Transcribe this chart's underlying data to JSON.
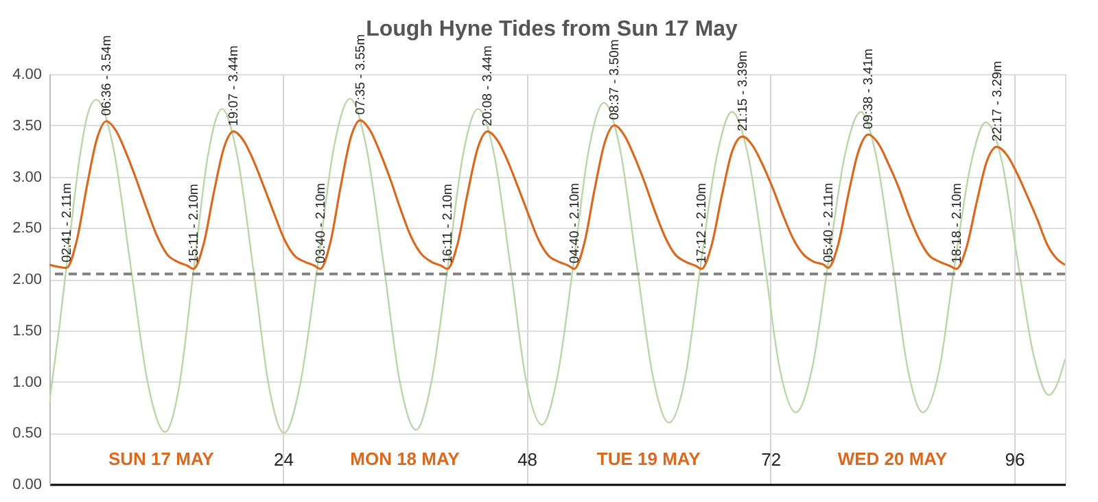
{
  "chart_data": {
    "type": "line",
    "title": "Lough Hyne Tides from Sun 17 May",
    "xlim": [
      1,
      101
    ],
    "xticks": [
      24,
      48,
      72,
      96
    ],
    "ylim": [
      0,
      4
    ],
    "yticks": [
      {
        "value": 0,
        "label": "0.00"
      },
      {
        "value": 0.5,
        "label": "0.50"
      },
      {
        "value": 1,
        "label": "1.00"
      },
      {
        "value": 1.5,
        "label": "1.50"
      },
      {
        "value": 2,
        "label": "2.00"
      },
      {
        "value": 2.5,
        "label": "2.50"
      },
      {
        "value": 3,
        "label": "3.00"
      },
      {
        "value": 3.5,
        "label": "3.50"
      },
      {
        "value": 4,
        "label": "4.00"
      }
    ],
    "grid": true,
    "line_style": "solid",
    "series": [
      {
        "color": "#b9d6a6",
        "x": [
          1,
          2,
          3,
          4,
          4.8,
          5.6,
          7.3,
          9.0,
          10.7,
          12.4,
          13.8,
          15.2,
          16.6,
          18.0,
          19.5,
          21.1,
          22.6,
          24.1,
          25.7,
          27.4,
          29.0,
          30.6,
          32.2,
          33.9,
          35.5,
          37.1,
          38.6,
          40.2,
          41.7,
          43.2,
          44.8,
          46.4,
          47.9,
          49.5,
          51.0,
          52.6,
          54.1,
          55.6,
          57.2,
          58.8,
          60.4,
          62.0,
          63.6,
          65.1,
          66.7,
          68.2,
          69.8,
          71.4,
          72.9,
          74.5,
          76.1,
          77.7,
          79.3,
          80.9,
          82.4,
          84.0,
          85.5,
          87.0,
          88.6,
          90.1,
          91.7,
          93.2,
          94.8,
          96.3,
          97.9,
          99.4,
          100.2,
          101
        ],
        "values": [
          0.8,
          1.55,
          2.4,
          3.2,
          3.62,
          3.75,
          3.28,
          2.13,
          0.98,
          0.51,
          0.97,
          2.09,
          3.2,
          3.66,
          3.2,
          2.08,
          0.96,
          0.5,
          0.98,
          2.13,
          3.28,
          3.76,
          3.29,
          2.15,
          1.0,
          0.53,
          0.99,
          2.1,
          3.2,
          3.66,
          3.21,
          2.12,
          1.03,
          0.58,
          1.04,
          2.15,
          3.26,
          3.72,
          3.26,
          2.16,
          1.06,
          0.6,
          1.04,
          2.12,
          3.19,
          3.63,
          3.2,
          2.17,
          1.13,
          0.7,
          1.13,
          2.17,
          3.2,
          3.63,
          3.2,
          2.17,
          1.13,
          0.7,
          1.11,
          2.12,
          3.11,
          3.53,
          3.14,
          2.2,
          1.26,
          0.87,
          0.97,
          1.22
        ]
      },
      {
        "color": "#d9691f",
        "x": [
          1,
          2.68,
          3.68,
          4.68,
          5.68,
          6.6,
          7.6,
          8.6,
          9.6,
          10.6,
          11.6,
          12.6,
          13.6,
          14.6,
          15.18,
          16.18,
          17.18,
          18.18,
          19.12,
          20.12,
          21.12,
          22.12,
          23.12,
          24.12,
          25.12,
          26.12,
          27.12,
          27.67,
          28.67,
          29.67,
          30.67,
          31.58,
          32.58,
          33.58,
          34.58,
          35.58,
          36.58,
          37.58,
          38.58,
          39.58,
          40.18,
          41.18,
          42.18,
          43.18,
          44.13,
          45.13,
          46.13,
          47.13,
          48.13,
          49.13,
          50.13,
          51.13,
          52.13,
          52.67,
          53.67,
          54.67,
          55.67,
          56.62,
          57.62,
          58.62,
          59.62,
          60.62,
          61.62,
          62.62,
          63.62,
          64.62,
          65.2,
          66.2,
          67.2,
          68.2,
          69.25,
          70.25,
          71.25,
          72.25,
          73.25,
          74.25,
          75.25,
          76.25,
          77.25,
          77.67,
          78.67,
          79.67,
          80.67,
          81.63,
          82.63,
          83.63,
          84.63,
          85.63,
          86.63,
          87.63,
          88.63,
          89.63,
          90.3,
          91.3,
          92.3,
          93.3,
          94.28,
          95.28,
          96.28,
          97.28,
          98.28,
          99.28,
          100.28,
          101
        ],
        "values": [
          2.14,
          2.11,
          2.37,
          2.9,
          3.37,
          3.54,
          3.44,
          3.22,
          2.96,
          2.68,
          2.42,
          2.24,
          2.17,
          2.13,
          2.1,
          2.34,
          2.84,
          3.28,
          3.44,
          3.35,
          3.15,
          2.9,
          2.64,
          2.39,
          2.23,
          2.17,
          2.13,
          2.1,
          2.36,
          2.9,
          3.38,
          3.55,
          3.45,
          3.23,
          2.97,
          2.68,
          2.42,
          2.25,
          2.17,
          2.13,
          2.1,
          2.34,
          2.84,
          3.28,
          3.44,
          3.35,
          3.15,
          2.9,
          2.64,
          2.39,
          2.23,
          2.17,
          2.13,
          2.1,
          2.35,
          2.87,
          3.33,
          3.5,
          3.4,
          3.19,
          2.94,
          2.66,
          2.41,
          2.24,
          2.17,
          2.13,
          2.1,
          2.33,
          2.81,
          3.24,
          3.39,
          3.3,
          3.11,
          2.88,
          2.62,
          2.39,
          2.24,
          2.17,
          2.14,
          2.11,
          2.34,
          2.83,
          3.25,
          3.41,
          3.32,
          3.12,
          2.89,
          2.62,
          2.39,
          2.23,
          2.17,
          2.13,
          2.1,
          2.31,
          2.75,
          3.15,
          3.29,
          3.21,
          3.03,
          2.81,
          2.58,
          2.33,
          2.19,
          2.14
        ],
        "value_labels": [
          null,
          "02:41 - 2.11m",
          null,
          null,
          null,
          "06:36 - 3.54m",
          null,
          null,
          null,
          null,
          null,
          null,
          null,
          null,
          "15:11 - 2.10m",
          null,
          null,
          null,
          "19:07 - 3.44m",
          null,
          null,
          null,
          null,
          null,
          null,
          null,
          null,
          "03:40 - 2.10m",
          null,
          null,
          null,
          "07:35 - 3.55m",
          null,
          null,
          null,
          null,
          null,
          null,
          null,
          null,
          "16:11 - 2.10m",
          null,
          null,
          null,
          "20:08 - 3.44m",
          null,
          null,
          null,
          null,
          null,
          null,
          null,
          null,
          "04:40 - 2.10m",
          null,
          null,
          null,
          "08:37 - 3.50m",
          null,
          null,
          null,
          null,
          null,
          null,
          null,
          null,
          "17:12 - 2.10m",
          null,
          null,
          null,
          "21:15 - 3.39m",
          null,
          null,
          null,
          null,
          null,
          null,
          null,
          null,
          "05:40 - 2.11m",
          null,
          null,
          null,
          "09:38 - 3.41m",
          null,
          null,
          null,
          null,
          null,
          null,
          null,
          null,
          "18:18 - 2.10m",
          null,
          null,
          null,
          "22:17 - 3.29m",
          null,
          null,
          null,
          null,
          null,
          null,
          null
        ]
      }
    ],
    "ref_lines": [
      {
        "axis": "y",
        "value": 2.05,
        "color": "#808080",
        "line_style": "dashed"
      }
    ],
    "annotations": [
      "SUN 17 MAY",
      "MON 18 MAY",
      "TUE 19 MAY",
      "WED 20 MAY"
    ]
  }
}
